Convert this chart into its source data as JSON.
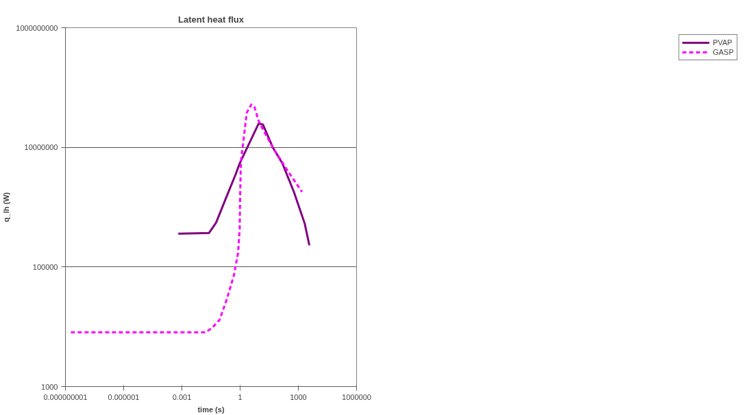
{
  "chart_data": {
    "type": "line",
    "title": "Latent heat flux",
    "xlabel": "time (s)",
    "ylabel": "q_lh (W)",
    "log": "xy",
    "grid": "y",
    "legend": "right",
    "xlim": [
      1e-09,
      1000000
    ],
    "ylim": [
      1000,
      1000000000
    ],
    "xticks": [
      {
        "value": 1e-09,
        "label": "0.000000001"
      },
      {
        "value": 1e-06,
        "label": "0.000001"
      },
      {
        "value": 0.001,
        "label": "0.001"
      },
      1,
      1000,
      1000000
    ],
    "yticks": [
      1000,
      100000,
      10000000,
      1000000000
    ],
    "series": [
      {
        "name": "PVAP",
        "color": "#800080",
        "line_style": "solid",
        "x": [
          0.00065,
          0.025,
          0.058,
          0.2,
          0.58,
          0.91,
          1.2,
          9,
          15,
          48,
          150,
          590,
          2100,
          3700
        ],
        "values": [
          360000,
          370000,
          550000,
          1500000,
          3500000,
          5200000,
          6300000,
          25000000,
          24000000,
          10000000,
          5400000,
          1800000,
          540000,
          230000
        ]
      },
      {
        "name": "GASP",
        "color": "#ff00ff",
        "line_style": "dashed",
        "x": [
          1.9e-09,
          0.016,
          0.035,
          0.087,
          0.2,
          0.47,
          0.78,
          0.95,
          1.0,
          1.1,
          1.35,
          2.2,
          3.8,
          5.4,
          8.9,
          15,
          48,
          290,
          1550
        ],
        "values": [
          8100,
          8100,
          9500,
          13000,
          28000,
          71000,
          170000,
          440000,
          1500000,
          5800000,
          10000000,
          38000000,
          52000000,
          48000000,
          28000000,
          20000000,
          10000000,
          4000000,
          1800000
        ]
      }
    ]
  }
}
